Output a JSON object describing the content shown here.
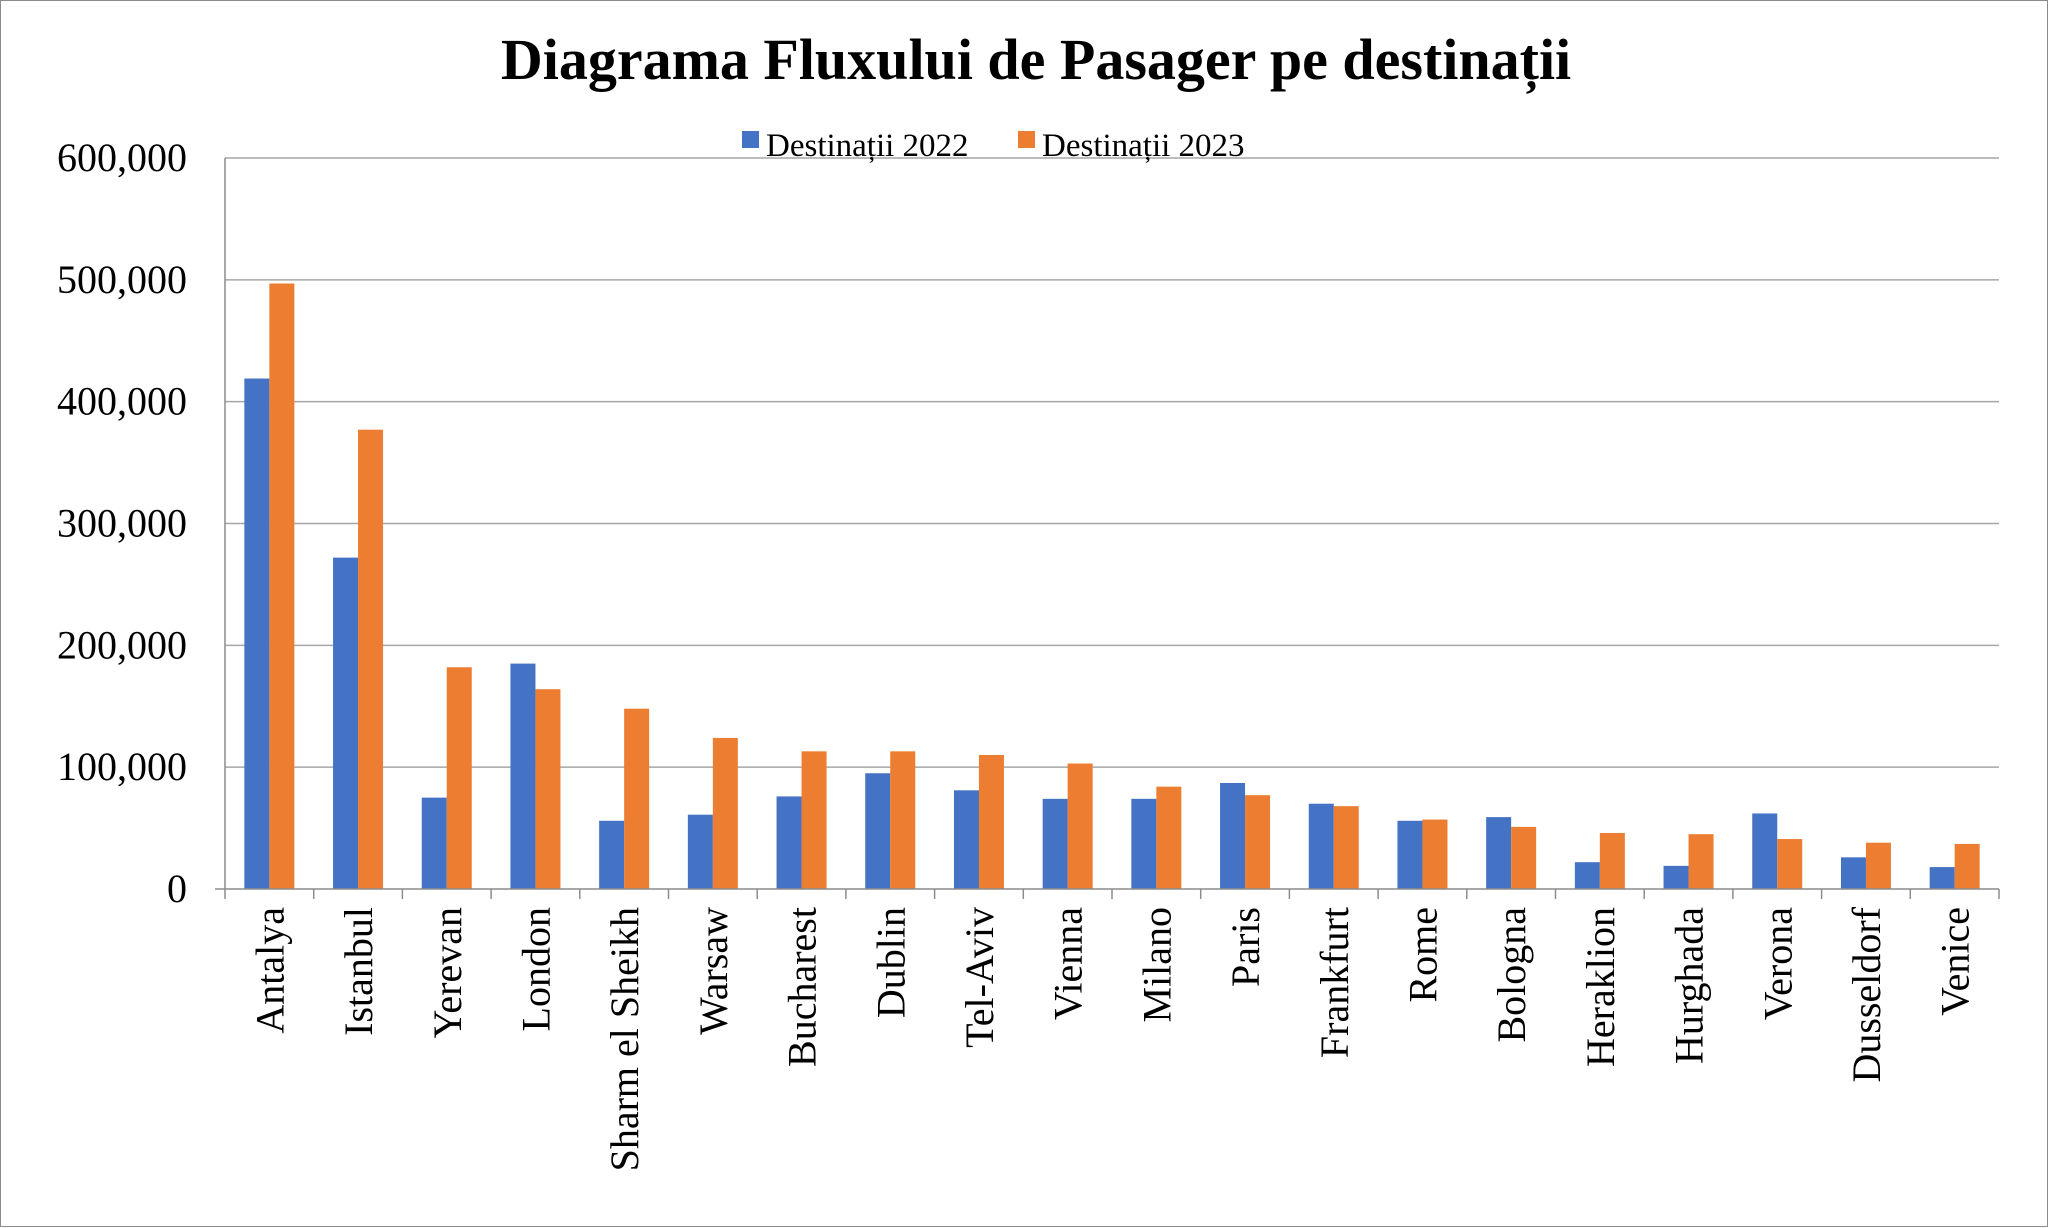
{
  "chart_data": {
    "type": "bar",
    "title": "Diagrama Fluxului de Pasager pe destinații",
    "xlabel": "",
    "ylabel": "",
    "ylim": [
      0,
      600000
    ],
    "yticks": [
      0,
      100000,
      200000,
      300000,
      400000,
      500000,
      600000
    ],
    "ytick_labels": [
      "0",
      "100,000",
      "200,000",
      "300,000",
      "400,000",
      "500,000",
      "600,000"
    ],
    "grid": true,
    "legend_position": "top-center",
    "categories": [
      "Antalya",
      "Istanbul",
      "Yerevan",
      "London",
      "Sharm el Sheikh",
      "Warsaw",
      "Bucharest",
      "Dublin",
      "Tel-Aviv",
      "Vienna",
      "Milano",
      "Paris",
      "Frankfurt",
      "Rome",
      "Bologna",
      "Heraklion",
      "Hurghada",
      "Verona",
      "Dusseldorf",
      "Venice"
    ],
    "series": [
      {
        "name": "Destinații 2022",
        "color": "#4472C4",
        "values": [
          419000,
          272000,
          75000,
          185000,
          56000,
          61000,
          76000,
          95000,
          81000,
          74000,
          74000,
          87000,
          70000,
          56000,
          59000,
          22000,
          19000,
          62000,
          26000,
          18000
        ]
      },
      {
        "name": "Destinații 2023",
        "color": "#ED7D31",
        "values": [
          497000,
          377000,
          182000,
          164000,
          148000,
          124000,
          113000,
          113000,
          110000,
          103000,
          84000,
          77000,
          68000,
          57000,
          51000,
          46000,
          45000,
          41000,
          38000,
          37000
        ]
      }
    ]
  }
}
